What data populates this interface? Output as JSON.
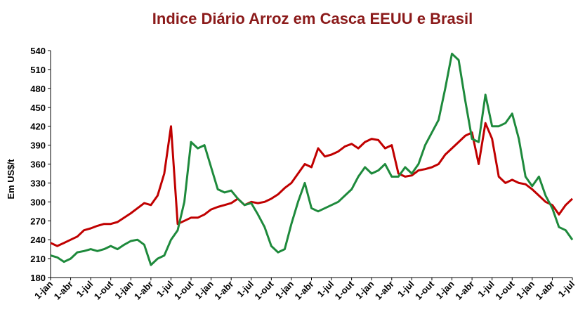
{
  "chart_data": {
    "type": "line",
    "title": "Indice Diário Arroz em Casca EEUU e Brasil",
    "y_label": "Em US$/t",
    "categories": [
      "1-jan",
      null,
      null,
      "1-abr",
      null,
      null,
      "1-jul",
      null,
      null,
      "1-out",
      null,
      null,
      "1-jan",
      null,
      null,
      "1-abr",
      null,
      null,
      "1-jul",
      null,
      null,
      "1-out",
      null,
      null,
      "1-jan",
      null,
      null,
      "1-abr",
      null,
      null,
      "1-jul",
      null,
      null,
      "1-out",
      null,
      null,
      "1-jan",
      null,
      null,
      "1-abr",
      null,
      null,
      "1-jul",
      null,
      null,
      "1-out",
      null,
      null,
      "1-jan",
      null,
      null,
      "1-abr",
      null,
      null,
      "1-jul",
      null,
      null,
      "1-out",
      null,
      null,
      "1-jan",
      null,
      null,
      "1-abr",
      null,
      null,
      "1-jul",
      null,
      null,
      "1-out",
      null,
      null,
      "1-jan",
      null,
      null,
      "1-abr",
      null,
      null,
      "1-jul"
    ],
    "series": [
      {
        "color": "#c00000",
        "values": [
          235,
          230,
          235,
          240,
          245,
          255,
          258,
          262,
          265,
          265,
          268,
          275,
          282,
          290,
          298,
          295,
          310,
          345,
          420,
          265,
          270,
          275,
          275,
          280,
          288,
          292,
          295,
          298,
          305,
          295,
          300,
          298,
          300,
          305,
          312,
          322,
          330,
          345,
          360,
          355,
          385,
          372,
          375,
          380,
          388,
          392,
          385,
          395,
          400,
          398,
          385,
          390,
          345,
          340,
          342,
          350,
          352,
          355,
          360,
          375,
          385,
          395,
          405,
          410,
          360,
          425,
          400,
          340,
          330,
          335,
          330,
          328,
          320,
          310,
          300,
          295,
          280,
          295,
          305
        ]
      },
      {
        "color": "#1e8a3c",
        "values": [
          215,
          212,
          205,
          210,
          220,
          222,
          225,
          222,
          225,
          230,
          225,
          232,
          238,
          240,
          232,
          200,
          210,
          215,
          240,
          255,
          300,
          395,
          385,
          390,
          355,
          320,
          315,
          318,
          305,
          295,
          298,
          280,
          260,
          230,
          220,
          225,
          265,
          300,
          330,
          290,
          285,
          290,
          295,
          300,
          310,
          320,
          340,
          355,
          345,
          350,
          360,
          340,
          340,
          355,
          345,
          360,
          390,
          410,
          430,
          480,
          535,
          525,
          460,
          400,
          395,
          470,
          420,
          420,
          425,
          440,
          400,
          340,
          325,
          340,
          310,
          290,
          260,
          255,
          240
        ]
      }
    ],
    "ylim": [
      180,
      540
    ],
    "yticks": [
      180,
      210,
      240,
      270,
      300,
      330,
      360,
      390,
      420,
      450,
      480,
      510,
      540
    ]
  }
}
